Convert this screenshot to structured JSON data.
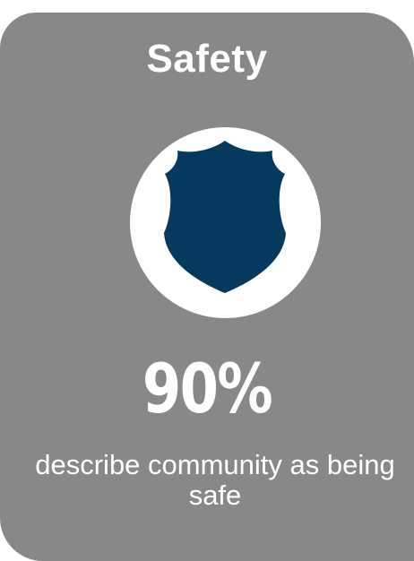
{
  "card": {
    "title": "Safety",
    "icon": "police-shield-icon",
    "stat_value": "90%",
    "caption": "describe community as being safe"
  },
  "colors": {
    "card_background": "#888888",
    "text": "#ffffff",
    "shield": "#053a5e",
    "icon_circle": "#ffffff"
  }
}
